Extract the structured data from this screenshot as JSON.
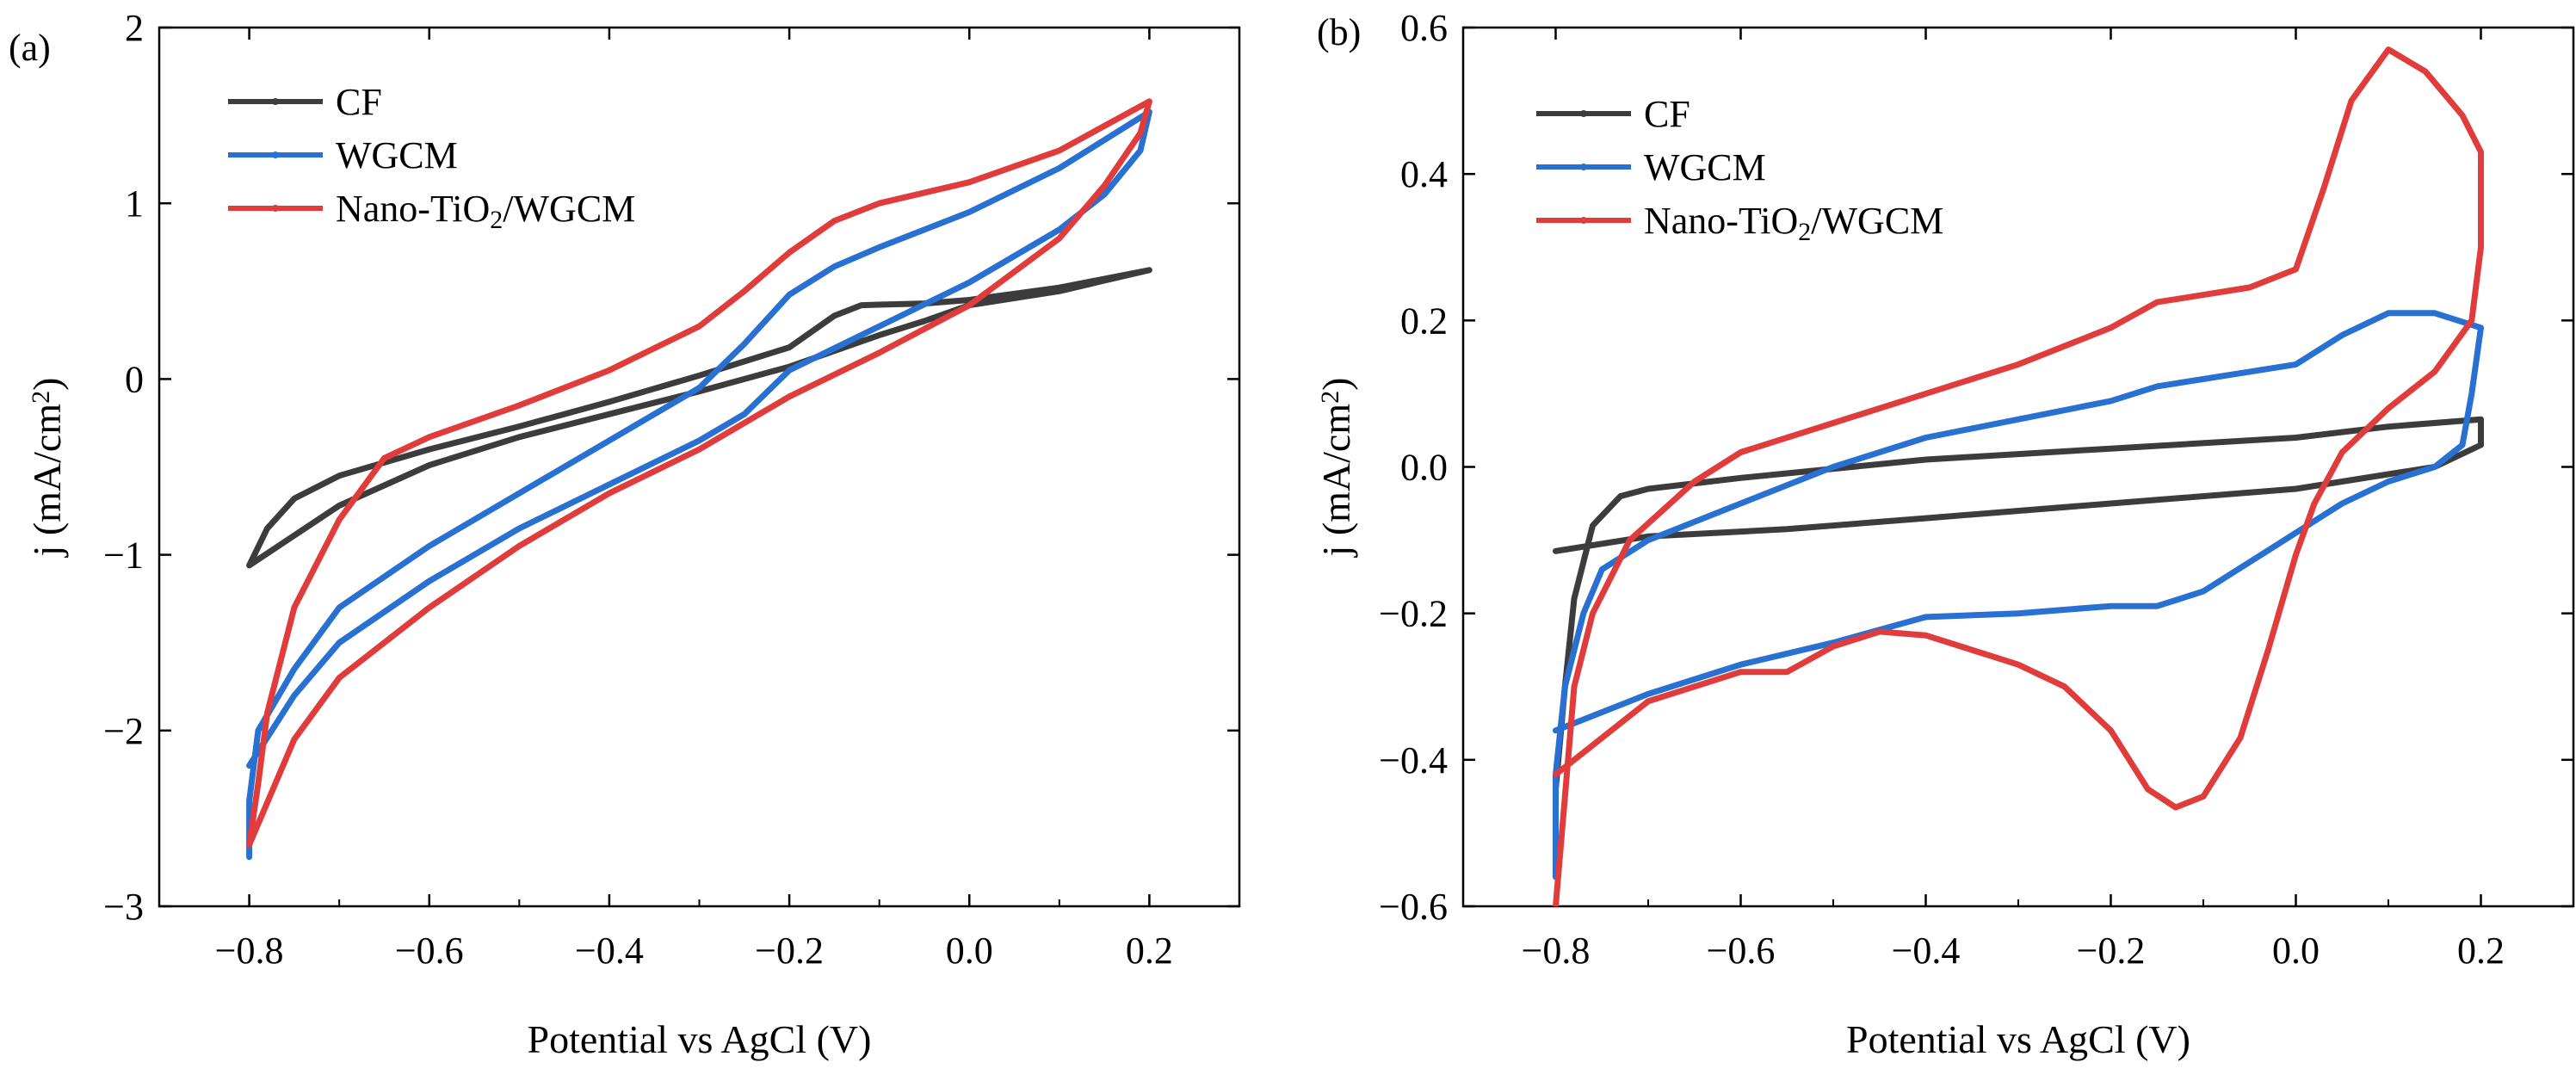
{
  "chart_data": [
    {
      "panel_label": "(a)",
      "type": "line",
      "xlabel": "Potential vs AgCl (V)",
      "ylabel": "j (mA/cm²)",
      "xlim": [
        -0.9,
        0.3
      ],
      "ylim": [
        -3,
        2
      ],
      "xticks": [
        -0.8,
        -0.6,
        -0.4,
        -0.2,
        0.0,
        0.2
      ],
      "xtick_labels": [
        "−0.8",
        "−0.6",
        "−0.4",
        "−0.2",
        "0.0",
        "0.2"
      ],
      "yticks": [
        -3,
        -2,
        -1,
        0,
        1,
        2
      ],
      "ytick_labels": [
        "−3",
        "−2",
        "−1",
        "0",
        "1",
        "2"
      ],
      "legend_position": "top-left",
      "series": [
        {
          "name": "CF",
          "color": "#3c3c3c",
          "points": [
            [
              -0.8,
              -1.06
            ],
            [
              -0.78,
              -0.85
            ],
            [
              -0.75,
              -0.68
            ],
            [
              -0.7,
              -0.55
            ],
            [
              -0.6,
              -0.4
            ],
            [
              -0.5,
              -0.27
            ],
            [
              -0.4,
              -0.13
            ],
            [
              -0.3,
              0.02
            ],
            [
              -0.2,
              0.18
            ],
            [
              -0.15,
              0.36
            ],
            [
              -0.12,
              0.42
            ],
            [
              -0.05,
              0.43
            ],
            [
              0.0,
              0.45
            ],
            [
              0.1,
              0.52
            ],
            [
              0.2,
              0.62
            ],
            [
              0.15,
              0.56
            ],
            [
              0.1,
              0.5
            ],
            [
              0.0,
              0.42
            ],
            [
              -0.05,
              0.33
            ],
            [
              -0.1,
              0.25
            ],
            [
              -0.2,
              0.07
            ],
            [
              -0.3,
              -0.07
            ],
            [
              -0.4,
              -0.2
            ],
            [
              -0.5,
              -0.33
            ],
            [
              -0.6,
              -0.49
            ],
            [
              -0.7,
              -0.72
            ],
            [
              -0.8,
              -1.06
            ]
          ]
        },
        {
          "name": "WGCM",
          "color": "#2870d2",
          "points": [
            [
              -0.8,
              -2.72
            ],
            [
              -0.8,
              -2.4
            ],
            [
              -0.79,
              -2.0
            ],
            [
              -0.75,
              -1.65
            ],
            [
              -0.7,
              -1.3
            ],
            [
              -0.6,
              -0.95
            ],
            [
              -0.5,
              -0.65
            ],
            [
              -0.4,
              -0.35
            ],
            [
              -0.3,
              -0.05
            ],
            [
              -0.25,
              0.2
            ],
            [
              -0.2,
              0.48
            ],
            [
              -0.15,
              0.64
            ],
            [
              -0.1,
              0.75
            ],
            [
              0.0,
              0.95
            ],
            [
              0.1,
              1.2
            ],
            [
              0.2,
              1.52
            ],
            [
              0.19,
              1.3
            ],
            [
              0.15,
              1.05
            ],
            [
              0.1,
              0.85
            ],
            [
              0.0,
              0.55
            ],
            [
              -0.1,
              0.3
            ],
            [
              -0.2,
              0.05
            ],
            [
              -0.25,
              -0.2
            ],
            [
              -0.3,
              -0.35
            ],
            [
              -0.4,
              -0.6
            ],
            [
              -0.5,
              -0.85
            ],
            [
              -0.6,
              -1.15
            ],
            [
              -0.7,
              -1.5
            ],
            [
              -0.75,
              -1.8
            ],
            [
              -0.8,
              -2.2
            ]
          ]
        },
        {
          "name": "Nano-TiO₂/WGCM",
          "color": "#e03c3c",
          "points": [
            [
              -0.8,
              -2.65
            ],
            [
              -0.79,
              -2.3
            ],
            [
              -0.78,
              -1.9
            ],
            [
              -0.75,
              -1.3
            ],
            [
              -0.7,
              -0.8
            ],
            [
              -0.65,
              -0.45
            ],
            [
              -0.6,
              -0.33
            ],
            [
              -0.5,
              -0.15
            ],
            [
              -0.4,
              0.05
            ],
            [
              -0.3,
              0.3
            ],
            [
              -0.25,
              0.5
            ],
            [
              -0.2,
              0.72
            ],
            [
              -0.15,
              0.9
            ],
            [
              -0.1,
              1.0
            ],
            [
              0.0,
              1.12
            ],
            [
              0.1,
              1.3
            ],
            [
              0.2,
              1.58
            ],
            [
              0.19,
              1.4
            ],
            [
              0.15,
              1.1
            ],
            [
              0.1,
              0.8
            ],
            [
              0.0,
              0.42
            ],
            [
              -0.1,
              0.15
            ],
            [
              -0.2,
              -0.1
            ],
            [
              -0.3,
              -0.4
            ],
            [
              -0.4,
              -0.65
            ],
            [
              -0.5,
              -0.95
            ],
            [
              -0.6,
              -1.3
            ],
            [
              -0.7,
              -1.7
            ],
            [
              -0.75,
              -2.05
            ],
            [
              -0.8,
              -2.65
            ]
          ]
        }
      ]
    },
    {
      "panel_label": "(b)",
      "type": "line",
      "xlabel": "Potential vs AgCl (V)",
      "ylabel": "j (mA/cm²)",
      "xlim": [
        -0.9,
        0.3
      ],
      "ylim": [
        -0.6,
        0.6
      ],
      "xticks": [
        -0.8,
        -0.6,
        -0.4,
        -0.2,
        0.0,
        0.2
      ],
      "xtick_labels": [
        "−0.8",
        "−0.6",
        "−0.4",
        "−0.2",
        "0.0",
        "0.2"
      ],
      "yticks": [
        -0.6,
        -0.4,
        -0.2,
        0.0,
        0.2,
        0.4,
        0.6
      ],
      "ytick_labels": [
        "−0.6",
        "−0.4",
        "−0.2",
        "0.0",
        "0.2",
        "0.4",
        "0.6"
      ],
      "legend_position": "top-left",
      "series": [
        {
          "name": "CF",
          "color": "#3c3c3c",
          "points": [
            [
              -0.8,
              -0.44
            ],
            [
              -0.79,
              -0.3
            ],
            [
              -0.78,
              -0.18
            ],
            [
              -0.76,
              -0.08
            ],
            [
              -0.73,
              -0.04
            ],
            [
              -0.7,
              -0.03
            ],
            [
              -0.6,
              -0.015
            ],
            [
              -0.4,
              0.01
            ],
            [
              -0.2,
              0.025
            ],
            [
              0.0,
              0.04
            ],
            [
              0.1,
              0.055
            ],
            [
              0.2,
              0.065
            ],
            [
              0.2,
              0.03
            ],
            [
              0.15,
              0.0
            ],
            [
              0.0,
              -0.03
            ],
            [
              -0.2,
              -0.05
            ],
            [
              -0.4,
              -0.07
            ],
            [
              -0.55,
              -0.085
            ],
            [
              -0.7,
              -0.095
            ],
            [
              -0.8,
              -0.115
            ]
          ]
        },
        {
          "name": "WGCM",
          "color": "#2870d2",
          "points": [
            [
              -0.8,
              -0.56
            ],
            [
              -0.8,
              -0.42
            ],
            [
              -0.79,
              -0.3
            ],
            [
              -0.77,
              -0.2
            ],
            [
              -0.75,
              -0.14
            ],
            [
              -0.7,
              -0.1
            ],
            [
              -0.6,
              -0.05
            ],
            [
              -0.5,
              0.0
            ],
            [
              -0.4,
              0.04
            ],
            [
              -0.2,
              0.09
            ],
            [
              -0.15,
              0.11
            ],
            [
              -0.05,
              0.13
            ],
            [
              0.0,
              0.14
            ],
            [
              0.05,
              0.18
            ],
            [
              0.1,
              0.21
            ],
            [
              0.15,
              0.21
            ],
            [
              0.2,
              0.19
            ],
            [
              0.19,
              0.1
            ],
            [
              0.18,
              0.03
            ],
            [
              0.15,
              0.0
            ],
            [
              0.1,
              -0.02
            ],
            [
              0.05,
              -0.05
            ],
            [
              0.0,
              -0.09
            ],
            [
              -0.05,
              -0.13
            ],
            [
              -0.1,
              -0.17
            ],
            [
              -0.15,
              -0.19
            ],
            [
              -0.2,
              -0.19
            ],
            [
              -0.3,
              -0.2
            ],
            [
              -0.4,
              -0.205
            ],
            [
              -0.5,
              -0.24
            ],
            [
              -0.6,
              -0.27
            ],
            [
              -0.7,
              -0.31
            ],
            [
              -0.8,
              -0.36
            ]
          ]
        },
        {
          "name": "Nano-TiO₂/WGCM",
          "color": "#e03c3c",
          "points": [
            [
              -0.8,
              -0.6
            ],
            [
              -0.79,
              -0.45
            ],
            [
              -0.78,
              -0.3
            ],
            [
              -0.76,
              -0.2
            ],
            [
              -0.72,
              -0.1
            ],
            [
              -0.65,
              -0.02
            ],
            [
              -0.6,
              0.02
            ],
            [
              -0.5,
              0.06
            ],
            [
              -0.4,
              0.1
            ],
            [
              -0.3,
              0.14
            ],
            [
              -0.2,
              0.19
            ],
            [
              -0.15,
              0.225
            ],
            [
              -0.1,
              0.235
            ],
            [
              -0.05,
              0.245
            ],
            [
              0.0,
              0.27
            ],
            [
              0.03,
              0.38
            ],
            [
              0.06,
              0.5
            ],
            [
              0.1,
              0.57
            ],
            [
              0.14,
              0.54
            ],
            [
              0.18,
              0.48
            ],
            [
              0.2,
              0.43
            ],
            [
              0.2,
              0.3
            ],
            [
              0.19,
              0.2
            ],
            [
              0.15,
              0.13
            ],
            [
              0.1,
              0.08
            ],
            [
              0.05,
              0.02
            ],
            [
              0.02,
              -0.05
            ],
            [
              0.0,
              -0.12
            ],
            [
              -0.03,
              -0.25
            ],
            [
              -0.06,
              -0.37
            ],
            [
              -0.1,
              -0.45
            ],
            [
              -0.13,
              -0.465
            ],
            [
              -0.16,
              -0.44
            ],
            [
              -0.2,
              -0.36
            ],
            [
              -0.25,
              -0.3
            ],
            [
              -0.3,
              -0.27
            ],
            [
              -0.4,
              -0.23
            ],
            [
              -0.45,
              -0.225
            ],
            [
              -0.5,
              -0.245
            ],
            [
              -0.55,
              -0.28
            ],
            [
              -0.6,
              -0.28
            ],
            [
              -0.7,
              -0.32
            ],
            [
              -0.8,
              -0.42
            ]
          ]
        }
      ]
    }
  ]
}
